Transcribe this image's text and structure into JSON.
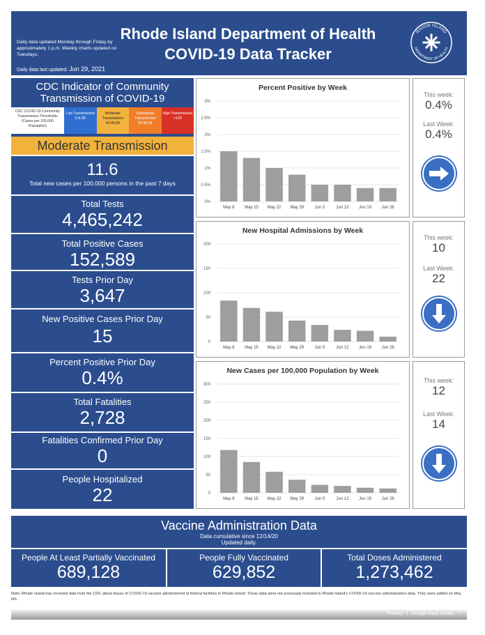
{
  "header": {
    "note": "Daily data updated Monday through Friday by approximately 1 p.m. Weekly charts updated on Tuesdays.",
    "updated_prefix": "Daily data last updated:",
    "updated_date": "Jun 29, 2021",
    "title_line1": "Rhode Island Department of Health",
    "title_line2": "COVID-19 Data Tracker",
    "seal_top": "RHODE ISLAND",
    "seal_bottom": "DEPARTMENT OF HEALTH"
  },
  "cdc": {
    "title": "CDC Indicator of Community Transmission of COVID-19",
    "threshold_label": "CDC COVID-19 Community Transmission Thresholds (Cases per 100,000 Population)",
    "levels": [
      {
        "name": "Low Transmission",
        "range": "0-9.99",
        "color": "#2f6fd1"
      },
      {
        "name": "Moderate Transmission",
        "range": "10-49.99",
        "color": "#f2b33d"
      },
      {
        "name": "Substantial Transmission",
        "range": "50-99.99",
        "color": "#f07d2a"
      },
      {
        "name": "High Transmission",
        "range": ">100",
        "color": "#d93025"
      }
    ],
    "status": "Moderate Transmission",
    "status_color": "#f2b33d"
  },
  "metrics": {
    "new_cases_rate": {
      "value": "11.6",
      "label": "Total new cases per 100,000 persons in the past 7 days"
    },
    "total_tests": {
      "label": "Total Tests",
      "value": "4,465,242"
    },
    "total_positive": {
      "label": "Total Positive Cases",
      "value": "152,589"
    },
    "tests_prior_day": {
      "label": "Tests Prior Day",
      "value": "3,647"
    },
    "new_positive_prior": {
      "label": "New Positive Cases Prior Day",
      "value": "15"
    },
    "pct_positive_prior": {
      "label": "Percent Positive Prior Day",
      "value": "0.4%"
    },
    "total_fatalities": {
      "label": "Total Fatalities",
      "value": "2,728"
    },
    "fatalities_prior": {
      "label": "Fatalities Confirmed Prior Day",
      "value": "0"
    },
    "hospitalized": {
      "label": "People Hospitalized",
      "value": "22"
    }
  },
  "side": {
    "this_week_label": "This week:",
    "last_week_label": "Last Week:",
    "pct": {
      "this": "0.4%",
      "last": "0.4%",
      "direction": "right-arrow-icon"
    },
    "hosp": {
      "this": "10",
      "last": "22",
      "direction": "down-arrow-icon"
    },
    "cases": {
      "this": "12",
      "last": "14",
      "direction": "down-arrow-icon"
    }
  },
  "chart_data": [
    {
      "type": "bar",
      "title": "Percent Positive by Week",
      "categories": [
        "May 8",
        "May 15",
        "May 22",
        "May 29",
        "Jun 5",
        "Jun 12",
        "Jun 19",
        "Jun 26"
      ],
      "values": [
        1.5,
        1.3,
        1.0,
        0.8,
        0.5,
        0.5,
        0.4,
        0.4
      ],
      "ylim": [
        0,
        3
      ],
      "yticks": [
        "0%",
        "0.5%",
        "1%",
        "1.5%",
        "2%",
        "2.5%",
        "3%"
      ],
      "ytick_values": [
        0,
        0.5,
        1,
        1.5,
        2,
        2.5,
        3
      ]
    },
    {
      "type": "bar",
      "title": "New Hospital Admissions by Week",
      "categories": [
        "May 8",
        "May 15",
        "May 22",
        "May 29",
        "Jun 5",
        "Jun 12",
        "Jun 19",
        "Jun 26"
      ],
      "values": [
        84,
        69,
        61,
        43,
        34,
        24,
        22,
        10
      ],
      "ylim": [
        0,
        200
      ],
      "yticks": [
        "0",
        "50",
        "100",
        "150",
        "200"
      ],
      "ytick_values": [
        0,
        50,
        100,
        150,
        200
      ]
    },
    {
      "type": "bar",
      "title": "New Cases per 100,000 Population by Week",
      "categories": [
        "May 8",
        "May 15",
        "May 22",
        "May 29",
        "Jun 5",
        "Jun 12",
        "Jun 19",
        "Jun 26"
      ],
      "values": [
        118,
        85,
        58,
        36,
        22,
        19,
        14,
        12
      ],
      "ylim": [
        0,
        300
      ],
      "yticks": [
        "0",
        "50",
        "100",
        "150",
        "200",
        "250",
        "300"
      ],
      "ytick_values": [
        0,
        50,
        100,
        150,
        200,
        250,
        300
      ]
    }
  ],
  "vaccine": {
    "title": "Vaccine Administration Data",
    "sub1": "Data cumulative since 12/14/20",
    "sub2": "Updated daily.",
    "partial": {
      "label": "People At Least Partially Vaccinated",
      "value": "689,128"
    },
    "full": {
      "label": "People Fully Vaccinated",
      "value": "629,852"
    },
    "doses": {
      "label": "Total Doses Administered",
      "value": "1,273,462"
    }
  },
  "footer": {
    "note": "Note: Rhode Island has received data from the CDC about doses of COVID-19 vaccine administered at federal facilities in Rhode Island. These data were not previously included in Rhode Island's COVID-19 vaccine administration data. They were added on May 6th.",
    "privacy": "Privacy",
    "brand": "Google Data Studio"
  }
}
